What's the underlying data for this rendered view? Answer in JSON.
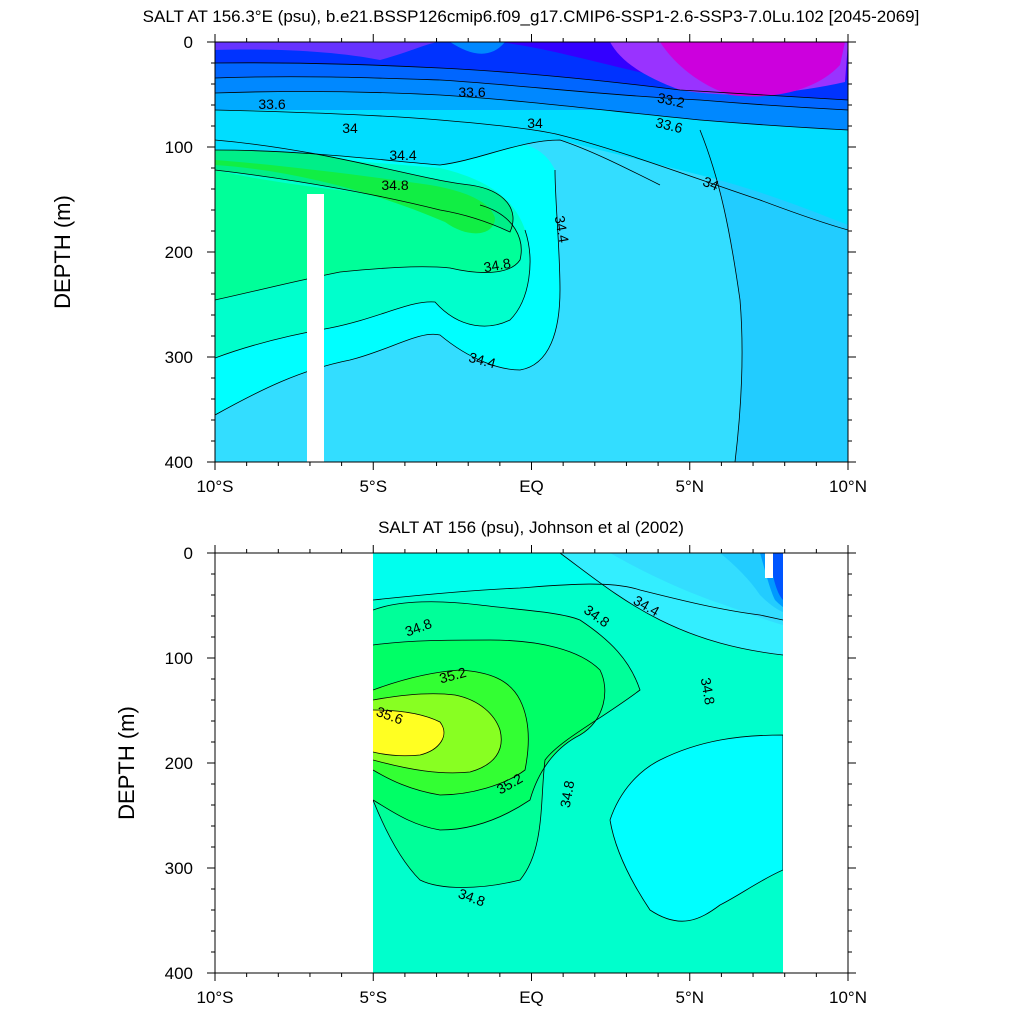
{
  "chart_data": [
    {
      "type": "contour",
      "title": "SALT AT 156.3°E (psu), b.e21.BSSP126cmip6.f09_g17.CMIP6-SSP1-2.6-SSP3-7.0Lu.102 [2045-2069]",
      "ylabel": "DEPTH (m)",
      "x_ticks": [
        "10°S",
        "5°S",
        "EQ",
        "5°N",
        "10°N"
      ],
      "y_ticks": [
        "0",
        "100",
        "200",
        "300",
        "400"
      ],
      "xlim": [
        -10,
        10
      ],
      "ylim": [
        400,
        0
      ],
      "contour_labels": [
        "33.6",
        "33.6",
        "33.2",
        "34",
        "34",
        "33.6",
        "34.4",
        "34.8",
        "34.4",
        "34",
        "34.8",
        "34.4"
      ]
    },
    {
      "type": "contour",
      "title": "SALT AT 156 (psu), Johnson et al (2002)",
      "ylabel": "DEPTH (m)",
      "x_ticks": [
        "10°S",
        "5°S",
        "EQ",
        "5°N",
        "10°N"
      ],
      "y_ticks": [
        "0",
        "100",
        "200",
        "300",
        "400"
      ],
      "xlim": [
        -10,
        10
      ],
      "ylim": [
        400,
        0
      ],
      "contour_labels": [
        "34.8",
        "34.8",
        "34.4",
        "35.2",
        "34.8",
        "35.6",
        "35.2",
        "34.8",
        "34.8"
      ]
    }
  ]
}
